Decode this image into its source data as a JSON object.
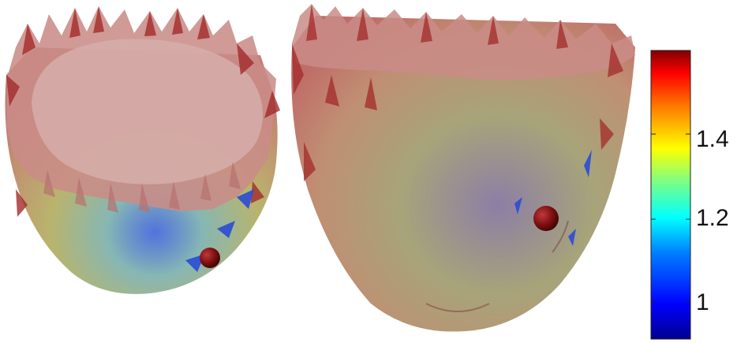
{
  "colorbar": {
    "tick_labels": [
      "1.4",
      "1.2",
      "1"
    ],
    "colors": [
      "#00008f",
      "#0000ff",
      "#0080ff",
      "#00ffff",
      "#80ff80",
      "#ffff00",
      "#ff8000",
      "#ff0000",
      "#800000"
    ]
  },
  "surface_colors": {
    "base_tint": "#c98c87",
    "rim": "#a32a2a",
    "low_region": "#2a4bd6",
    "mid_region": "#9fc06a",
    "marker": "#7a0f10"
  }
}
